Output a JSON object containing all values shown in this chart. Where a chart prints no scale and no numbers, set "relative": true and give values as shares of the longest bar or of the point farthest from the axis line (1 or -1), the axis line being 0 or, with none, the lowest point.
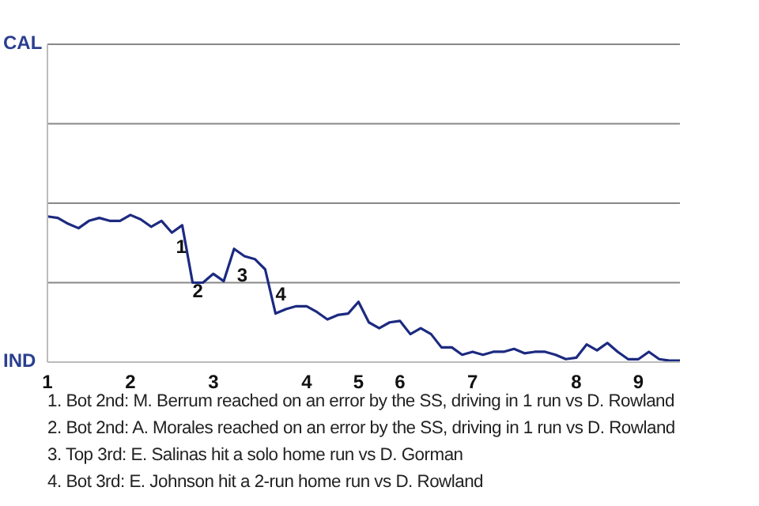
{
  "chart_data": {
    "type": "line",
    "relative": true,
    "categories": [
      "1",
      null,
      null,
      null,
      null,
      null,
      null,
      null,
      "2",
      null,
      null,
      null,
      null,
      null,
      null,
      null,
      "3",
      null,
      null,
      null,
      null,
      null,
      null,
      null,
      null,
      "4",
      null,
      null,
      null,
      null,
      "5",
      null,
      null,
      null,
      "6",
      null,
      null,
      null,
      null,
      null,
      null,
      "7",
      null,
      null,
      null,
      null,
      null,
      null,
      null,
      null,
      null,
      "8",
      null,
      null,
      null,
      null,
      null,
      "9",
      null,
      null,
      null,
      null
    ],
    "series": [
      {
        "color": "#1c2a80",
        "values": [
          0.99,
          0.98,
          0.94,
          0.91,
          0.96,
          0.98,
          0.96,
          0.96,
          1,
          0.97,
          0.92,
          0.96,
          0.88,
          0.93,
          0.54,
          0.54,
          0.6,
          0.55,
          0.77,
          0.72,
          0.7,
          0.63,
          0.33,
          0.36,
          0.38,
          0.38,
          0.34,
          0.29,
          0.32,
          0.33,
          0.41,
          0.27,
          0.23,
          0.27,
          0.28,
          0.19,
          0.23,
          0.19,
          0.1,
          0.1,
          0.05,
          0.07,
          0.05,
          0.07,
          0.07,
          0.09,
          0.06,
          0.07,
          0.07,
          0.05,
          0.02,
          0.03,
          0.12,
          0.08,
          0.13,
          0.07,
          0.02,
          0.02,
          0.07,
          0.02,
          0.01,
          0.01
        ]
      }
    ],
    "ref_lines": [
      {
        "axis": "y",
        "value": 0.54
      },
      {
        "axis": "y",
        "value": 1.08
      },
      {
        "axis": "y",
        "value": 1.62
      },
      {
        "axis": "y",
        "value": 2.16
      }
    ],
    "legend": false,
    "marker": "none",
    "line_style": "solid",
    "annotations": [
      "CAL",
      "IND",
      "1",
      "2",
      "3",
      "4",
      "1. Bot 2nd: M. Berrum reached on an error by the SS, driving in 1 run vs D. Rowland",
      "2. Bot 2nd: A. Morales reached on an error by the SS, driving in 1 run vs D. Rowland",
      "3. Top 3rd: E. Salinas hit a solo home run vs D. Gorman",
      "4. Bot 3rd: E. Johnson hit a 2-run home run vs D. Rowland"
    ]
  }
}
